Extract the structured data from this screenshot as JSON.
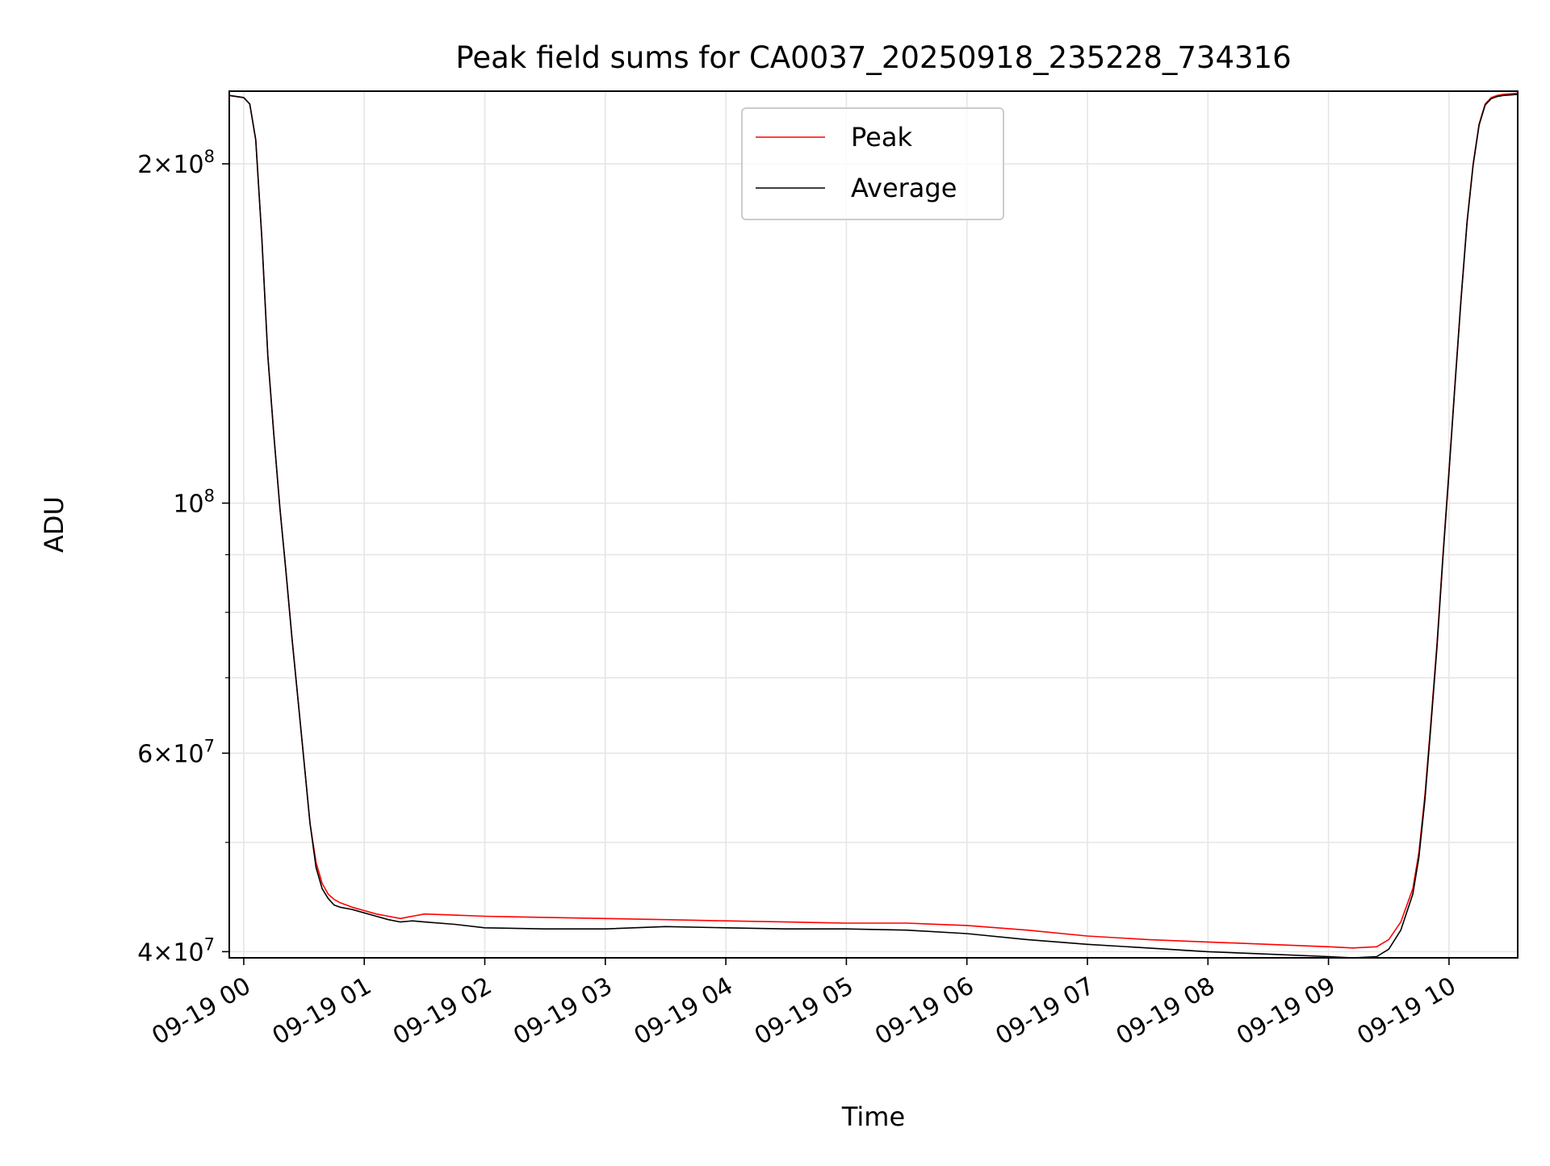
{
  "chart_data": {
    "type": "line",
    "title": "Peak field sums for CA0037_20250918_235228_734316",
    "xlabel": "Time",
    "ylabel": "ADU",
    "yscale": "log",
    "ylim": [
      39500000,
      232000000
    ],
    "xlim_hours": [
      -0.12,
      10.57
    ],
    "grid": true,
    "legend_position": "upper-center",
    "x_tick_labels": [
      "09-19 00",
      "09-19 01",
      "09-19 02",
      "09-19 03",
      "09-19 04",
      "09-19 05",
      "09-19 06",
      "09-19 07",
      "09-19 08",
      "09-19 09",
      "09-19 10"
    ],
    "x_tick_hours": [
      0,
      1,
      2,
      3,
      4,
      5,
      6,
      7,
      8,
      9,
      10
    ],
    "y_major_ticks": [
      {
        "value": 40000000,
        "mantissa": "4",
        "base": "10",
        "exp": "7"
      },
      {
        "value": 60000000,
        "mantissa": "6",
        "base": "10",
        "exp": "7"
      },
      {
        "value": 100000000,
        "mantissa": "",
        "base": "10",
        "exp": "8"
      },
      {
        "value": 200000000,
        "mantissa": "2",
        "base": "10",
        "exp": "8"
      }
    ],
    "y_minor_ticks": [
      50000000,
      70000000,
      80000000,
      90000000
    ],
    "series": [
      {
        "name": "Peak",
        "color": "#ff0000",
        "x_hours": [
          -0.12,
          0.0,
          0.05,
          0.1,
          0.15,
          0.2,
          0.25,
          0.3,
          0.35,
          0.4,
          0.45,
          0.5,
          0.55,
          0.6,
          0.65,
          0.7,
          0.75,
          0.8,
          0.9,
          1.0,
          1.1,
          1.2,
          1.3,
          1.4,
          1.5,
          1.75,
          2.0,
          2.5,
          3.0,
          3.5,
          4.0,
          4.5,
          5.0,
          5.5,
          6.0,
          6.5,
          7.0,
          7.5,
          8.0,
          8.5,
          9.0,
          9.2,
          9.4,
          9.5,
          9.6,
          9.7,
          9.75,
          9.8,
          9.85,
          9.9,
          9.95,
          10.0,
          10.05,
          10.1,
          10.15,
          10.2,
          10.25,
          10.3,
          10.35,
          10.4,
          10.45,
          10.57
        ],
        "values": [
          230000000,
          229000000,
          226000000,
          210000000,
          172000000,
          135000000,
          115000000,
          99000000,
          87000000,
          76000000,
          67000000,
          59000000,
          52000000,
          48000000,
          46000000,
          45000000,
          44500000,
          44200000,
          43800000,
          43500000,
          43200000,
          43000000,
          42800000,
          43000000,
          43200000,
          43100000,
          43000000,
          42900000,
          42800000,
          42700000,
          42600000,
          42500000,
          42400000,
          42400000,
          42200000,
          41800000,
          41300000,
          41000000,
          40800000,
          40600000,
          40400000,
          40300000,
          40400000,
          41000000,
          42500000,
          45500000,
          49000000,
          55000000,
          64000000,
          75000000,
          90000000,
          107000000,
          128000000,
          152000000,
          178000000,
          200000000,
          217000000,
          226000000,
          229000000,
          230000000,
          230500000,
          231000000
        ]
      },
      {
        "name": "Average",
        "color": "#000000",
        "x_hours": [
          -0.12,
          0.0,
          0.05,
          0.1,
          0.15,
          0.2,
          0.25,
          0.3,
          0.35,
          0.4,
          0.45,
          0.5,
          0.55,
          0.6,
          0.65,
          0.7,
          0.75,
          0.8,
          0.9,
          1.0,
          1.1,
          1.2,
          1.3,
          1.4,
          1.5,
          1.75,
          2.0,
          2.5,
          3.0,
          3.5,
          4.0,
          4.5,
          5.0,
          5.5,
          6.0,
          6.5,
          7.0,
          7.5,
          8.0,
          8.5,
          9.0,
          9.2,
          9.4,
          9.5,
          9.6,
          9.7,
          9.75,
          9.8,
          9.85,
          9.9,
          9.95,
          10.0,
          10.05,
          10.1,
          10.15,
          10.2,
          10.25,
          10.3,
          10.35,
          10.4,
          10.45,
          10.57
        ],
        "values": [
          230000000,
          229000000,
          226000000,
          210000000,
          172000000,
          135000000,
          115000000,
          99000000,
          87000000,
          76000000,
          67000000,
          59000000,
          52000000,
          47500000,
          45500000,
          44600000,
          44000000,
          43800000,
          43600000,
          43300000,
          43000000,
          42700000,
          42500000,
          42600000,
          42500000,
          42300000,
          42000000,
          41900000,
          41900000,
          42100000,
          42000000,
          41900000,
          41900000,
          41800000,
          41500000,
          41000000,
          40600000,
          40300000,
          40000000,
          39800000,
          39600000,
          39500000,
          39600000,
          40200000,
          41800000,
          45000000,
          48500000,
          54500000,
          63500000,
          74500000,
          89500000,
          106500000,
          127500000,
          151500000,
          177500000,
          199500000,
          216500000,
          225500000,
          228500000,
          229500000,
          230000000,
          230500000
        ]
      }
    ]
  }
}
